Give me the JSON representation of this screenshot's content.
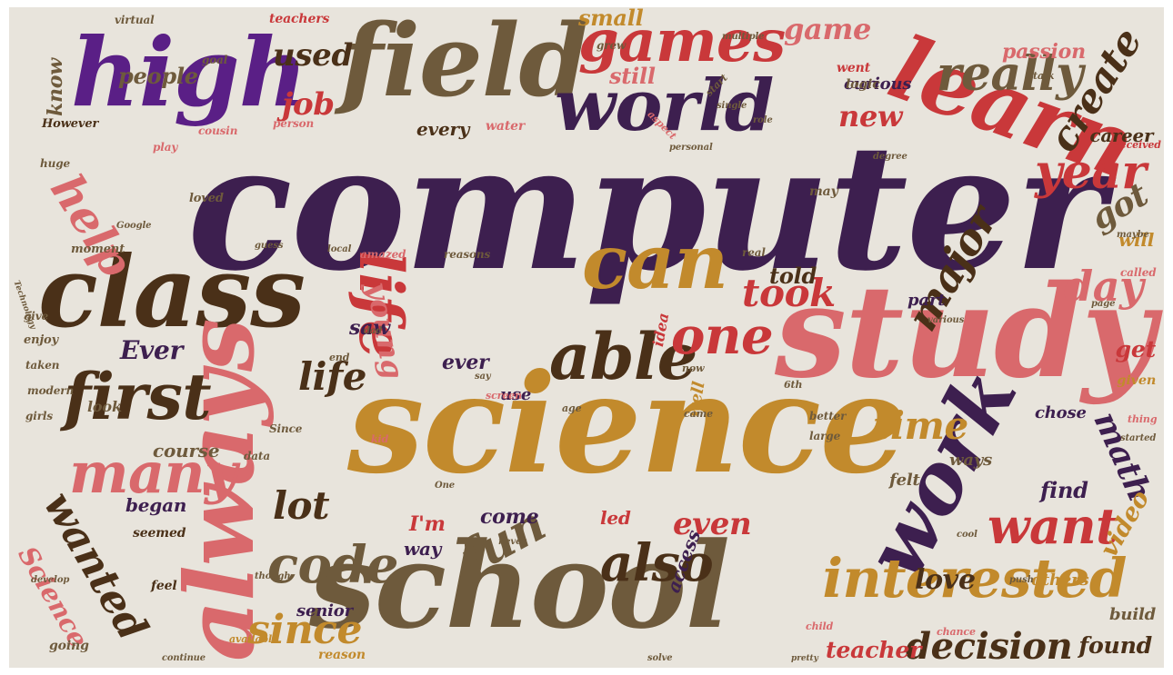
{
  "palette": {
    "background": "#e8e4dc",
    "plum": "#3d1f4f",
    "violet": "#5a1f86",
    "olive": "#6e5a3c",
    "ochre": "#c28a2c",
    "red": "#c9383a",
    "rose": "#d9696c",
    "brown": "#4a3018"
  },
  "words": [
    {
      "text": "computer",
      "weight": 1.0,
      "color": "plum"
    },
    {
      "text": "science",
      "weight": 0.85,
      "color": "ochre"
    },
    {
      "text": "school",
      "weight": 0.8,
      "color": "olive"
    },
    {
      "text": "study",
      "weight": 0.75,
      "color": "rose"
    },
    {
      "text": "class",
      "weight": 0.62,
      "color": "brown"
    },
    {
      "text": "field",
      "weight": 0.6,
      "color": "olive"
    },
    {
      "text": "high",
      "weight": 0.58,
      "color": "violet"
    },
    {
      "text": "always",
      "weight": 0.58,
      "color": "rose"
    },
    {
      "text": "learn",
      "weight": 0.5,
      "color": "red"
    },
    {
      "text": "world",
      "weight": 0.45,
      "color": "plum"
    },
    {
      "text": "games",
      "weight": 0.4,
      "color": "red"
    },
    {
      "text": "work",
      "weight": 0.45,
      "color": "plum"
    },
    {
      "text": "interested",
      "weight": 0.42,
      "color": "ochre"
    },
    {
      "text": "can",
      "weight": 0.45,
      "color": "ochre"
    },
    {
      "text": "able",
      "weight": 0.4,
      "color": "brown"
    },
    {
      "text": "first",
      "weight": 0.4,
      "color": "brown"
    },
    {
      "text": "life",
      "weight": 0.4,
      "color": "red"
    },
    {
      "text": "many",
      "weight": 0.38,
      "color": "rose"
    },
    {
      "text": "code",
      "weight": 0.35,
      "color": "olive"
    },
    {
      "text": "also",
      "weight": 0.36,
      "color": "brown"
    },
    {
      "text": "wanted",
      "weight": 0.35,
      "color": "brown"
    },
    {
      "text": "want",
      "weight": 0.35,
      "color": "red"
    },
    {
      "text": "one",
      "weight": 0.33,
      "color": "red"
    },
    {
      "text": "really",
      "weight": 0.33,
      "color": "olive"
    },
    {
      "text": "year",
      "weight": 0.32,
      "color": "red"
    },
    {
      "text": "create",
      "weight": 0.3,
      "color": "brown"
    },
    {
      "text": "major",
      "weight": 0.3,
      "color": "brown"
    },
    {
      "text": "help",
      "weight": 0.3,
      "color": "rose"
    },
    {
      "text": "fun",
      "weight": 0.3,
      "color": "olive"
    },
    {
      "text": "day",
      "weight": 0.28,
      "color": "rose"
    },
    {
      "text": "since",
      "weight": 0.28,
      "color": "ochre"
    },
    {
      "text": "decision",
      "weight": 0.28,
      "color": "brown"
    },
    {
      "text": "math",
      "weight": 0.26,
      "color": "plum"
    },
    {
      "text": "time",
      "weight": 0.26,
      "color": "ochre"
    },
    {
      "text": "lot",
      "weight": 0.26,
      "color": "brown"
    },
    {
      "text": "took",
      "weight": 0.25,
      "color": "red"
    },
    {
      "text": "game",
      "weight": 0.24,
      "color": "rose"
    },
    {
      "text": "job",
      "weight": 0.22,
      "color": "red"
    },
    {
      "text": "used",
      "weight": 0.22,
      "color": "brown"
    },
    {
      "text": "life",
      "weight": 0.24,
      "color": "brown"
    },
    {
      "text": "young",
      "weight": 0.22,
      "color": "rose"
    },
    {
      "text": "got",
      "weight": 0.24,
      "color": "olive"
    },
    {
      "text": "new",
      "weight": 0.22,
      "color": "red"
    },
    {
      "text": "even",
      "weight": 0.22,
      "color": "red"
    },
    {
      "text": "love",
      "weight": 0.2,
      "color": "brown"
    },
    {
      "text": "video",
      "weight": 0.2,
      "color": "ochre"
    },
    {
      "text": "teacher",
      "weight": 0.2,
      "color": "red"
    },
    {
      "text": "found",
      "weight": 0.2,
      "color": "brown"
    },
    {
      "text": "Science",
      "weight": 0.22,
      "color": "rose"
    },
    {
      "text": "Ever",
      "weight": 0.18,
      "color": "plum"
    },
    {
      "text": "people",
      "weight": 0.18,
      "color": "olive"
    },
    {
      "text": "know",
      "weight": 0.18,
      "color": "olive"
    },
    {
      "text": "passion",
      "weight": 0.16,
      "color": "rose"
    },
    {
      "text": "small",
      "weight": 0.16,
      "color": "ochre"
    },
    {
      "text": "still",
      "weight": 0.16,
      "color": "rose"
    },
    {
      "text": "told",
      "weight": 0.16,
      "color": "brown"
    },
    {
      "text": "get",
      "weight": 0.16,
      "color": "red"
    },
    {
      "text": "career",
      "weight": 0.16,
      "color": "brown"
    },
    {
      "text": "will",
      "weight": 0.16,
      "color": "ochre"
    },
    {
      "text": "every",
      "weight": 0.14,
      "color": "brown"
    },
    {
      "text": "curious",
      "weight": 0.14,
      "color": "plum"
    },
    {
      "text": "ever",
      "weight": 0.14,
      "color": "plum"
    },
    {
      "text": "saw",
      "weight": 0.14,
      "color": "plum"
    },
    {
      "text": "part",
      "weight": 0.13,
      "color": "plum"
    },
    {
      "text": "course",
      "weight": 0.14,
      "color": "olive"
    },
    {
      "text": "began",
      "weight": 0.14,
      "color": "plum"
    },
    {
      "text": "come",
      "weight": 0.14,
      "color": "plum"
    },
    {
      "text": "I'm",
      "weight": 0.14,
      "color": "red"
    },
    {
      "text": "led",
      "weight": 0.13,
      "color": "red"
    },
    {
      "text": "way",
      "weight": 0.13,
      "color": "plum"
    },
    {
      "text": "access",
      "weight": 0.13,
      "color": "plum"
    },
    {
      "text": "senior",
      "weight": 0.13,
      "color": "plum"
    },
    {
      "text": "felt",
      "weight": 0.13,
      "color": "olive"
    },
    {
      "text": "find",
      "weight": 0.14,
      "color": "plum"
    },
    {
      "text": "ways",
      "weight": 0.13,
      "color": "olive"
    },
    {
      "text": "chose",
      "weight": 0.13,
      "color": "plum"
    },
    {
      "text": "build",
      "weight": 0.13,
      "color": "olive"
    },
    {
      "text": "others",
      "weight": 0.13,
      "color": "ochre"
    },
    {
      "text": "given",
      "weight": 0.12,
      "color": "ochre"
    },
    {
      "text": "well",
      "weight": 0.12,
      "color": "ochre"
    },
    {
      "text": "use",
      "weight": 0.12,
      "color": "plum"
    },
    {
      "text": "idea",
      "weight": 0.12,
      "color": "red"
    },
    {
      "text": "look",
      "weight": 0.11,
      "color": "olive"
    },
    {
      "text": "seemed",
      "weight": 0.1,
      "color": "brown"
    },
    {
      "text": "feel",
      "weight": 0.1,
      "color": "brown"
    },
    {
      "text": "going",
      "weight": 0.1,
      "color": "olive"
    },
    {
      "text": "reason",
      "weight": 0.1,
      "color": "ochre"
    },
    {
      "text": "logic",
      "weight": 0.1,
      "color": "olive"
    },
    {
      "text": "went",
      "weight": 0.1,
      "color": "red"
    },
    {
      "text": "However",
      "weight": 0.09,
      "color": "brown"
    },
    {
      "text": "water",
      "weight": 0.09,
      "color": "rose"
    },
    {
      "text": "may",
      "weight": 0.09,
      "color": "olive"
    },
    {
      "text": "loved",
      "weight": 0.09,
      "color": "olive"
    },
    {
      "text": "moment",
      "weight": 0.09,
      "color": "olive"
    },
    {
      "text": "enjoy",
      "weight": 0.09,
      "color": "olive"
    },
    {
      "text": "give",
      "weight": 0.08,
      "color": "olive"
    },
    {
      "text": "taken",
      "weight": 0.08,
      "color": "olive"
    },
    {
      "text": "modern",
      "weight": 0.08,
      "color": "olive"
    },
    {
      "text": "girls",
      "weight": 0.08,
      "color": "olive"
    },
    {
      "text": "data",
      "weight": 0.08,
      "color": "olive"
    },
    {
      "text": "Since",
      "weight": 0.08,
      "color": "olive"
    },
    {
      "text": "better",
      "weight": 0.08,
      "color": "olive"
    },
    {
      "text": "large",
      "weight": 0.08,
      "color": "olive"
    },
    {
      "text": "teachers",
      "weight": 0.08,
      "color": "red"
    },
    {
      "text": "grew",
      "weight": 0.08,
      "color": "olive"
    },
    {
      "text": "goal",
      "weight": 0.08,
      "color": "olive"
    },
    {
      "text": "person",
      "weight": 0.08,
      "color": "rose"
    },
    {
      "text": "cousin",
      "weight": 0.08,
      "color": "rose"
    },
    {
      "text": "play",
      "weight": 0.08,
      "color": "rose"
    },
    {
      "text": "virtual",
      "weight": 0.08,
      "color": "olive"
    },
    {
      "text": "huge",
      "weight": 0.08,
      "color": "olive"
    },
    {
      "text": "amazed",
      "weight": 0.08,
      "color": "rose"
    },
    {
      "text": "reasons",
      "weight": 0.08,
      "color": "olive"
    },
    {
      "text": "real",
      "weight": 0.08,
      "color": "olive"
    },
    {
      "text": "called",
      "weight": 0.08,
      "color": "rose"
    },
    {
      "text": "received",
      "weight": 0.07,
      "color": "red"
    },
    {
      "text": "talk",
      "weight": 0.07,
      "color": "olive"
    },
    {
      "text": "start",
      "weight": 0.07,
      "color": "olive"
    },
    {
      "text": "aspect",
      "weight": 0.07,
      "color": "rose"
    },
    {
      "text": "available",
      "weight": 0.07,
      "color": "ochre"
    },
    {
      "text": "continue",
      "weight": 0.07,
      "color": "olive"
    },
    {
      "text": "solve",
      "weight": 0.07,
      "color": "olive"
    },
    {
      "text": "chance",
      "weight": 0.07,
      "color": "rose"
    },
    {
      "text": "child",
      "weight": 0.07,
      "color": "rose"
    },
    {
      "text": "thing",
      "weight": 0.07,
      "color": "rose"
    },
    {
      "text": "screen",
      "weight": 0.07,
      "color": "rose"
    },
    {
      "text": "age",
      "weight": 0.07,
      "color": "olive"
    },
    {
      "text": "kid",
      "weight": 0.07,
      "color": "rose"
    },
    {
      "text": "end",
      "weight": 0.07,
      "color": "olive"
    },
    {
      "text": "6th",
      "weight": 0.07,
      "color": "olive"
    },
    {
      "text": "came",
      "weight": 0.07,
      "color": "olive"
    },
    {
      "text": "now",
      "weight": 0.07,
      "color": "olive"
    },
    {
      "text": "maybe",
      "weight": 0.06,
      "color": "olive"
    },
    {
      "text": "page",
      "weight": 0.06,
      "color": "olive"
    },
    {
      "text": "develop",
      "weight": 0.06,
      "color": "olive"
    },
    {
      "text": "single",
      "weight": 0.06,
      "color": "olive"
    },
    {
      "text": "degree",
      "weight": 0.06,
      "color": "olive"
    },
    {
      "text": "role",
      "weight": 0.06,
      "color": "olive"
    },
    {
      "text": "dad",
      "weight": 0.06,
      "color": "olive"
    },
    {
      "text": "Google",
      "weight": 0.06,
      "color": "olive"
    },
    {
      "text": "Technology",
      "weight": 0.06,
      "color": "olive"
    },
    {
      "text": "various",
      "weight": 0.06,
      "color": "olive"
    },
    {
      "text": "local",
      "weight": 0.06,
      "color": "olive"
    },
    {
      "text": "started",
      "weight": 0.06,
      "color": "olive"
    },
    {
      "text": "pretty",
      "weight": 0.06,
      "color": "olive"
    },
    {
      "text": "though",
      "weight": 0.06,
      "color": "olive"
    },
    {
      "text": "never",
      "weight": 0.06,
      "color": "olive"
    },
    {
      "text": "One",
      "weight": 0.06,
      "color": "olive"
    },
    {
      "text": "guess",
      "weight": 0.06,
      "color": "olive"
    },
    {
      "text": "cool",
      "weight": 0.06,
      "color": "olive"
    },
    {
      "text": "personal",
      "weight": 0.06,
      "color": "olive"
    },
    {
      "text": "multiple",
      "weight": 0.06,
      "color": "olive"
    },
    {
      "text": "say",
      "weight": 0.06,
      "color": "olive"
    },
    {
      "text": "push",
      "weight": 0.06,
      "color": "olive"
    }
  ]
}
